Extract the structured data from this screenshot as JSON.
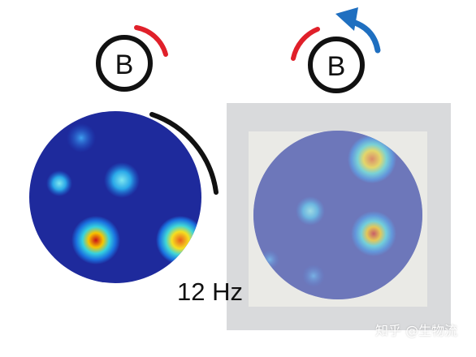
{
  "cue_left": {
    "letter": "B"
  },
  "cue_right": {
    "letter": "B"
  },
  "peak_rate_label": "12 Hz",
  "watermark": "知乎 @生物流",
  "colors": {
    "cue_arc": "#e0202a",
    "rotation_arrow": "#1f6fc0",
    "outline": "#111111",
    "map_background": "#1e2a9c",
    "panel_gray": "#d9dadc"
  }
}
